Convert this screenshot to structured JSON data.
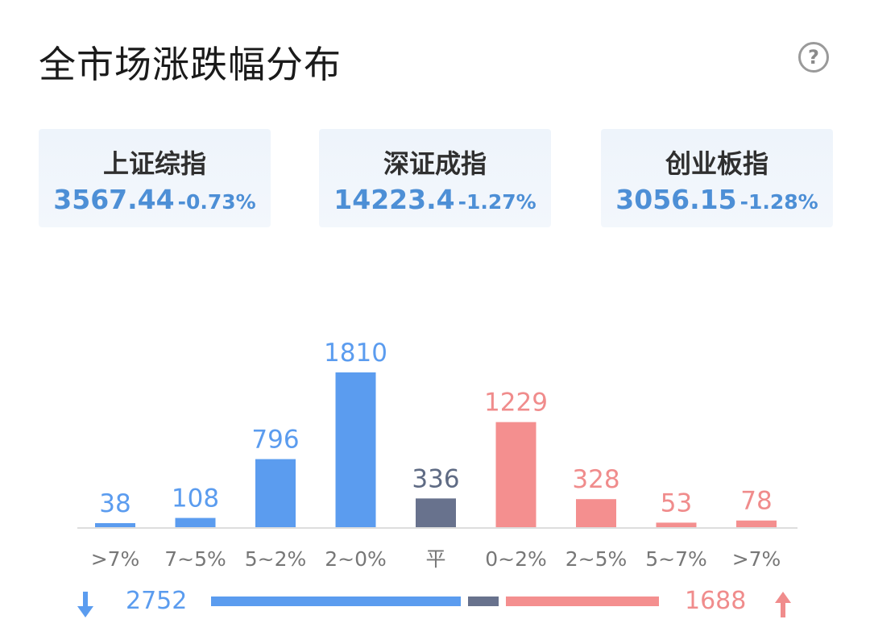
{
  "header": {
    "title": "全市场涨跌幅分布",
    "help_icon": "question-circle-icon",
    "help_symbol": "?"
  },
  "indices": [
    {
      "name": "上证综指",
      "value": "3567.44",
      "change": "-0.73%"
    },
    {
      "name": "深证成指",
      "value": "14223.4",
      "change": "-1.27%"
    },
    {
      "name": "创业板指",
      "value": "3056.15",
      "change": "-1.28%"
    }
  ],
  "colors": {
    "down": "#5b9cef",
    "flat": "#68728d",
    "up": "#f48f8f",
    "down_text": "#5b9cef",
    "flat_text": "#5f6b84",
    "up_text": "#f08c8c",
    "axis_label": "#777777",
    "baseline": "#dddddd"
  },
  "chart_data": {
    "type": "bar",
    "title": "",
    "categories": [
      ">7%",
      "7~5%",
      "5~2%",
      "2~0%",
      "平",
      "0~2%",
      "2~5%",
      "5~7%",
      ">7%"
    ],
    "values": [
      38,
      108,
      796,
      1810,
      336,
      1229,
      328,
      53,
      78
    ],
    "groups": [
      "down",
      "down",
      "down",
      "down",
      "flat",
      "up",
      "up",
      "up",
      "up"
    ],
    "ylim": [
      0,
      1810
    ],
    "grid": false
  },
  "summary": {
    "down_total": "2752",
    "up_total": "1688",
    "down_icon": "arrow-down-icon",
    "up_icon": "arrow-up-icon"
  }
}
